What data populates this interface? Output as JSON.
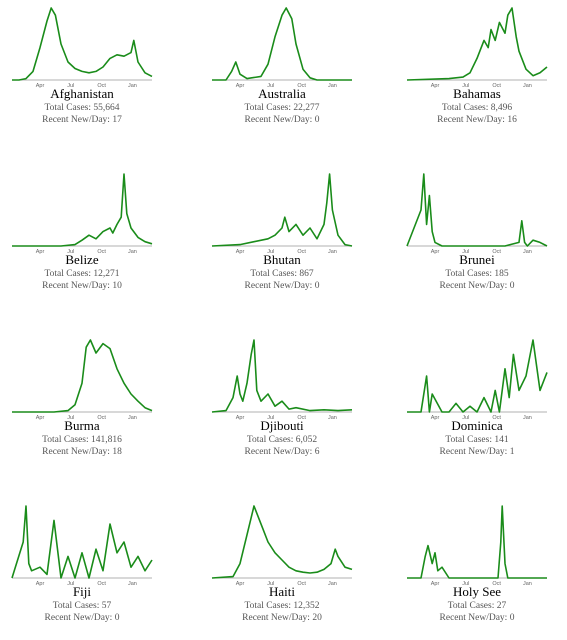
{
  "tick_labels": [
    "Apr",
    "Jul",
    "Oct",
    "Jan"
  ],
  "stat_labels": {
    "total": "Total Cases: ",
    "recent": "Recent New/Day: "
  },
  "line_color": "#1a8c1a",
  "chart_data": [
    {
      "type": "line",
      "title": "Afghanistan",
      "total_cases": "55,664",
      "recent_new_per_day": "17",
      "x": [
        0,
        0.05,
        0.1,
        0.15,
        0.2,
        0.25,
        0.28,
        0.31,
        0.35,
        0.4,
        0.45,
        0.5,
        0.55,
        0.6,
        0.65,
        0.7,
        0.75,
        0.8,
        0.85,
        0.87,
        0.9,
        0.95,
        1
      ],
      "y": [
        0,
        0,
        0.02,
        0.12,
        0.45,
        0.82,
        1,
        0.9,
        0.5,
        0.25,
        0.16,
        0.12,
        0.1,
        0.12,
        0.18,
        0.3,
        0.35,
        0.33,
        0.38,
        0.55,
        0.25,
        0.1,
        0.05
      ]
    },
    {
      "type": "line",
      "title": "Australia",
      "total_cases": "22,277",
      "recent_new_per_day": "0",
      "x": [
        0,
        0.1,
        0.14,
        0.17,
        0.2,
        0.25,
        0.35,
        0.4,
        0.45,
        0.5,
        0.53,
        0.57,
        0.6,
        0.65,
        0.7,
        0.75,
        0.8,
        1
      ],
      "y": [
        0,
        0,
        0.12,
        0.25,
        0.08,
        0.02,
        0.05,
        0.22,
        0.6,
        0.9,
        1,
        0.85,
        0.5,
        0.15,
        0.03,
        0,
        0,
        0
      ]
    },
    {
      "type": "line",
      "title": "Bahamas",
      "total_cases": "8,496",
      "recent_new_per_day": "16",
      "x": [
        0,
        0.3,
        0.4,
        0.45,
        0.5,
        0.55,
        0.58,
        0.6,
        0.63,
        0.66,
        0.7,
        0.72,
        0.75,
        0.78,
        0.8,
        0.85,
        0.9,
        0.95,
        1
      ],
      "y": [
        0,
        0.02,
        0.04,
        0.1,
        0.3,
        0.55,
        0.45,
        0.7,
        0.55,
        0.8,
        0.65,
        0.9,
        1,
        0.6,
        0.4,
        0.15,
        0.06,
        0.1,
        0.18
      ]
    },
    {
      "type": "line",
      "title": "Belize",
      "total_cases": "12,271",
      "recent_new_per_day": "10",
      "x": [
        0,
        0.35,
        0.45,
        0.5,
        0.55,
        0.6,
        0.65,
        0.7,
        0.72,
        0.75,
        0.78,
        0.8,
        0.82,
        0.85,
        0.9,
        0.95,
        1
      ],
      "y": [
        0,
        0,
        0.02,
        0.08,
        0.15,
        0.1,
        0.2,
        0.25,
        0.18,
        0.3,
        0.4,
        1,
        0.45,
        0.25,
        0.12,
        0.06,
        0.03
      ]
    },
    {
      "type": "line",
      "title": "Bhutan",
      "total_cases": "867",
      "recent_new_per_day": "0",
      "x": [
        0,
        0.2,
        0.3,
        0.4,
        0.45,
        0.5,
        0.52,
        0.55,
        0.6,
        0.65,
        0.7,
        0.75,
        0.8,
        0.82,
        0.84,
        0.86,
        0.9,
        0.95,
        1
      ],
      "y": [
        0,
        0.02,
        0.06,
        0.1,
        0.15,
        0.25,
        0.4,
        0.2,
        0.3,
        0.15,
        0.25,
        0.1,
        0.3,
        0.6,
        1,
        0.5,
        0.15,
        0.02,
        0
      ]
    },
    {
      "type": "line",
      "title": "Brunei",
      "total_cases": "185",
      "recent_new_per_day": "0",
      "x": [
        0,
        0.1,
        0.12,
        0.14,
        0.16,
        0.18,
        0.2,
        0.25,
        0.3,
        0.5,
        0.7,
        0.8,
        0.82,
        0.84,
        0.86,
        0.9,
        0.95,
        1
      ],
      "y": [
        0,
        0.5,
        1,
        0.3,
        0.7,
        0.2,
        0.05,
        0,
        0,
        0,
        0,
        0.05,
        0.35,
        0.05,
        0,
        0.08,
        0.05,
        0
      ]
    },
    {
      "type": "line",
      "title": "Burma",
      "total_cases": "141,816",
      "recent_new_per_day": "18",
      "x": [
        0,
        0.3,
        0.4,
        0.45,
        0.5,
        0.53,
        0.56,
        0.6,
        0.65,
        0.7,
        0.75,
        0.8,
        0.85,
        0.9,
        0.95,
        1
      ],
      "y": [
        0,
        0,
        0.02,
        0.1,
        0.4,
        0.9,
        1,
        0.82,
        0.95,
        0.88,
        0.6,
        0.4,
        0.25,
        0.15,
        0.06,
        0.02
      ]
    },
    {
      "type": "line",
      "title": "Djibouti",
      "total_cases": "6,052",
      "recent_new_per_day": "6",
      "x": [
        0,
        0.1,
        0.15,
        0.18,
        0.2,
        0.22,
        0.25,
        0.28,
        0.3,
        0.32,
        0.35,
        0.4,
        0.45,
        0.5,
        0.55,
        0.6,
        0.7,
        0.8,
        0.9,
        1
      ],
      "y": [
        0,
        0.02,
        0.2,
        0.5,
        0.25,
        0.15,
        0.4,
        0.8,
        1,
        0.3,
        0.15,
        0.25,
        0.08,
        0.15,
        0.04,
        0.06,
        0.02,
        0.03,
        0.02,
        0.03
      ]
    },
    {
      "type": "line",
      "title": "Dominica",
      "total_cases": "141",
      "recent_new_per_day": "1",
      "x": [
        0,
        0.1,
        0.14,
        0.16,
        0.18,
        0.25,
        0.3,
        0.35,
        0.4,
        0.45,
        0.5,
        0.55,
        0.6,
        0.63,
        0.66,
        0.7,
        0.73,
        0.76,
        0.8,
        0.85,
        0.9,
        0.95,
        1
      ],
      "y": [
        0,
        0,
        0.5,
        0,
        0.25,
        0,
        0,
        0.12,
        0,
        0.08,
        0,
        0.2,
        0,
        0.3,
        0,
        0.6,
        0.2,
        0.8,
        0.3,
        0.5,
        1,
        0.3,
        0.55
      ]
    },
    {
      "type": "line",
      "title": "Fiji",
      "total_cases": "57",
      "recent_new_per_day": "0",
      "x": [
        0,
        0.08,
        0.1,
        0.12,
        0.14,
        0.2,
        0.25,
        0.3,
        0.35,
        0.4,
        0.45,
        0.5,
        0.55,
        0.6,
        0.65,
        0.7,
        0.75,
        0.8,
        0.85,
        0.9,
        0.95,
        1
      ],
      "y": [
        0,
        0.5,
        1,
        0.2,
        0.1,
        0.15,
        0.05,
        0.8,
        0,
        0.3,
        0,
        0.35,
        0,
        0.4,
        0.1,
        0.75,
        0.35,
        0.5,
        0.15,
        0.3,
        0.1,
        0.25
      ]
    },
    {
      "type": "line",
      "title": "Haiti",
      "total_cases": "12,352",
      "recent_new_per_day": "20",
      "x": [
        0,
        0.15,
        0.2,
        0.25,
        0.3,
        0.33,
        0.36,
        0.4,
        0.45,
        0.5,
        0.55,
        0.6,
        0.65,
        0.7,
        0.75,
        0.8,
        0.85,
        0.88,
        0.9,
        0.95,
        1
      ],
      "y": [
        0,
        0.02,
        0.2,
        0.6,
        1,
        0.85,
        0.7,
        0.5,
        0.35,
        0.25,
        0.15,
        0.1,
        0.08,
        0.07,
        0.08,
        0.12,
        0.2,
        0.4,
        0.3,
        0.15,
        0.12
      ]
    },
    {
      "type": "line",
      "title": "Holy See",
      "total_cases": "27",
      "recent_new_per_day": "0",
      "x": [
        0,
        0.1,
        0.13,
        0.15,
        0.18,
        0.2,
        0.22,
        0.25,
        0.3,
        0.5,
        0.6,
        0.65,
        0.67,
        0.68,
        0.7,
        0.72,
        0.8,
        1
      ],
      "y": [
        0,
        0,
        0.3,
        0.45,
        0.2,
        0.35,
        0.1,
        0.15,
        0,
        0,
        0,
        0,
        0.5,
        1,
        0.2,
        0,
        0,
        0
      ]
    }
  ]
}
